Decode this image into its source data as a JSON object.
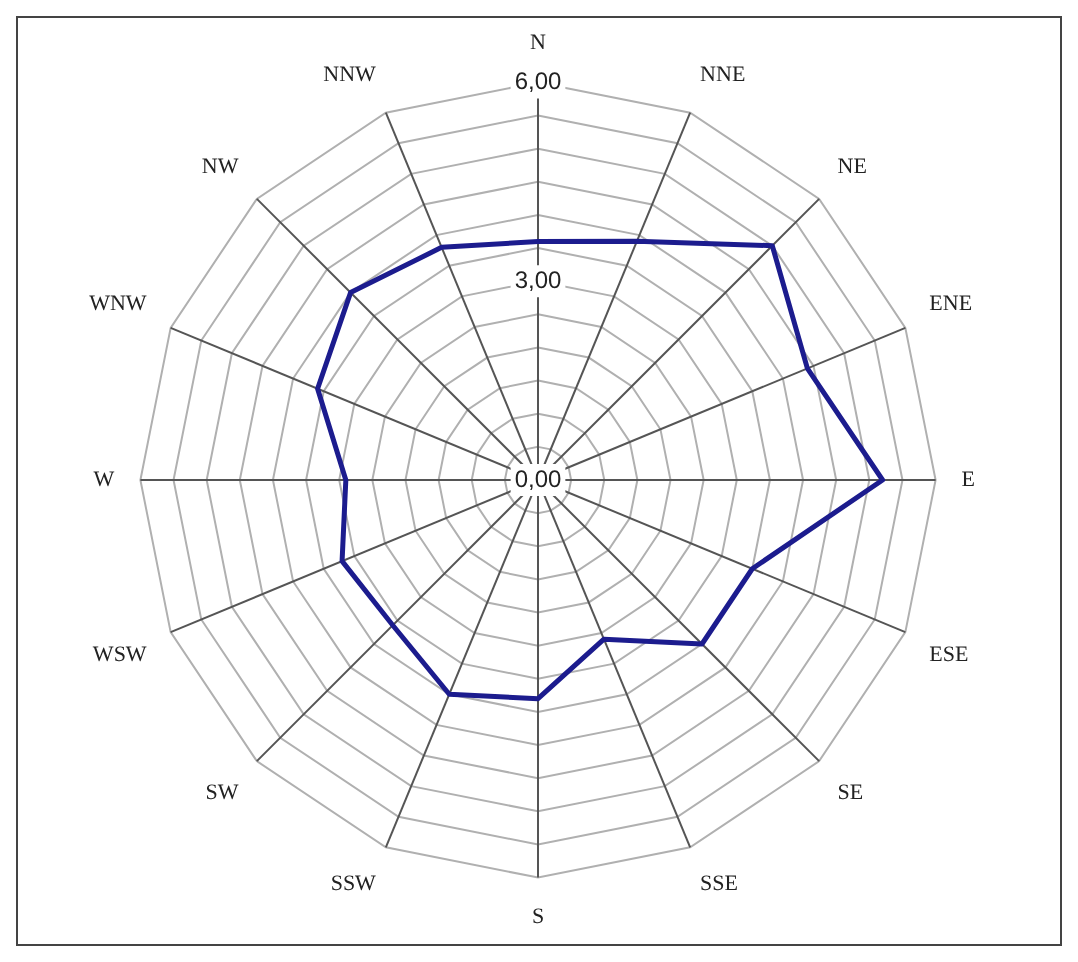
{
  "chart_data": {
    "type": "radar",
    "categories": [
      "N",
      "NNE",
      "NE",
      "ENE",
      "E",
      "ESE",
      "SE",
      "SSE",
      "S",
      "SSW",
      "SW",
      "WSW",
      "W",
      "WNW",
      "NW",
      "NNW"
    ],
    "series": [
      {
        "color": "#1c1c8e",
        "values": [
          3.6,
          3.9,
          5.0,
          4.4,
          5.2,
          3.5,
          3.5,
          2.6,
          3.3,
          3.5,
          3.1,
          3.2,
          2.9,
          3.6,
          4.0,
          3.8
        ]
      }
    ],
    "ylim": [
      0,
      6
    ],
    "yticks": [
      {
        "value": 0,
        "label": "0,00"
      },
      {
        "value": 3,
        "label": "3,00"
      },
      {
        "value": 6,
        "label": "6,00"
      }
    ],
    "grid": true,
    "marker": "none",
    "legend": false
  }
}
